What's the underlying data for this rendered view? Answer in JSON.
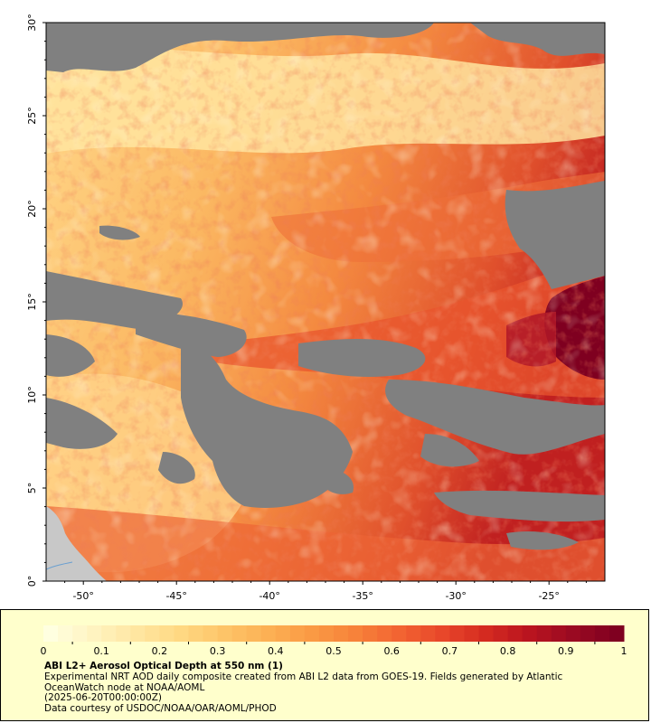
{
  "map": {
    "lat_ticks": [
      "0°",
      "5°",
      "10°",
      "15°",
      "20°",
      "25°",
      "30°"
    ],
    "lon_ticks": [
      "-50°",
      "-45°",
      "-40°",
      "-35°",
      "-30°",
      "-25°"
    ],
    "lat_values": [
      0,
      5,
      10,
      15,
      20,
      25,
      30
    ],
    "lon_values": [
      -50,
      -45,
      -40,
      -35,
      -30,
      -25
    ],
    "lat_range": [
      0,
      30
    ],
    "lon_range": [
      -52,
      -22
    ],
    "colors": {
      "no_data": "#808080",
      "land": "#c8c8c8",
      "low": "#ffe9a8",
      "mid": "#f7a04a",
      "high": "#d42a1e",
      "max": "#7f0020"
    }
  },
  "legend": {
    "tick_labels": [
      "0",
      "0.1",
      "0.2",
      "0.3",
      "0.4",
      "0.5",
      "0.6",
      "0.7",
      "0.8",
      "0.9",
      "1"
    ],
    "range": [
      0,
      1
    ],
    "title": "ABI L2+ Aerosol Optical Depth at 550 nm (1)",
    "description": "Experimental NRT AOD daily composite created from ABI L2 data from GOES-19. Fields generated by Atlantic OceanWatch node at NOAA/AOML",
    "timestamp": "(2025-06-20T00:00:00Z)",
    "credit": "Data courtesy of USDOC/NOAA/OAR/AOML/PHOD",
    "palette": [
      "#ffffe0",
      "#fff3c0",
      "#ffe6a0",
      "#ffd882",
      "#fdc468",
      "#fcb054",
      "#fa9a44",
      "#f7823a",
      "#f26432",
      "#e8472a",
      "#d42a20",
      "#b9141f",
      "#9a0a22",
      "#7f0020"
    ]
  }
}
